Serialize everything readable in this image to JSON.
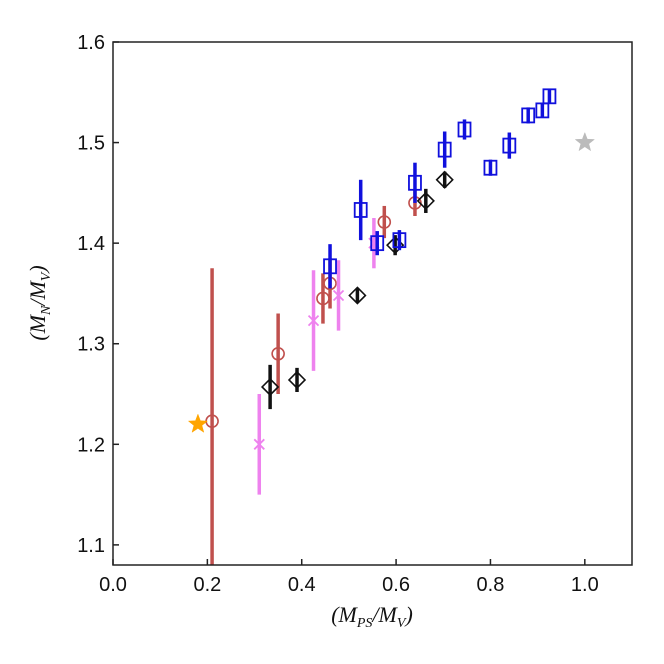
{
  "chart_data": {
    "type": "scatter",
    "title": "",
    "xlabel": {
      "main": "(M",
      "sub1": "PS",
      "mid": "/M",
      "sub2": "V",
      "end": ")"
    },
    "ylabel": {
      "main": "(M",
      "sub1": "N",
      "mid": "/M",
      "sub2": "V",
      "end": ")"
    },
    "xlim": [
      0.0,
      1.1
    ],
    "ylim": [
      1.08,
      1.6
    ],
    "xticks": [
      0.0,
      0.2,
      0.4,
      0.6,
      0.8,
      1.0
    ],
    "xtick_labels": [
      "0.0",
      "0.2",
      "0.4",
      "0.6",
      "0.8",
      "1.0"
    ],
    "yticks": [
      1.1,
      1.2,
      1.3,
      1.4,
      1.5,
      1.6
    ],
    "ytick_labels": [
      "1.1",
      "1.2",
      "1.3",
      "1.4",
      "1.5",
      "1.6"
    ],
    "grid": false,
    "series": [
      {
        "marker": "circle",
        "color": "#c0504d",
        "points": [
          {
            "x": 0.21,
            "y": 1.223,
            "lo": 1.08,
            "hi": 1.375
          },
          {
            "x": 0.35,
            "y": 1.29,
            "lo": 1.25,
            "hi": 1.33
          },
          {
            "x": 0.445,
            "y": 1.345,
            "lo": 1.32,
            "hi": 1.37
          },
          {
            "x": 0.46,
            "y": 1.36,
            "lo": 1.335,
            "hi": 1.385
          },
          {
            "x": 0.575,
            "y": 1.421,
            "lo": 1.405,
            "hi": 1.437
          },
          {
            "x": 0.64,
            "y": 1.44,
            "lo": 1.427,
            "hi": 1.453
          }
        ]
      },
      {
        "marker": "x",
        "color": "#ee82ee",
        "points": [
          {
            "x": 0.31,
            "y": 1.2,
            "lo": 1.15,
            "hi": 1.25
          },
          {
            "x": 0.425,
            "y": 1.323,
            "lo": 1.273,
            "hi": 1.373
          },
          {
            "x": 0.478,
            "y": 1.348,
            "lo": 1.313,
            "hi": 1.383
          },
          {
            "x": 0.553,
            "y": 1.4,
            "lo": 1.375,
            "hi": 1.425
          }
        ]
      },
      {
        "marker": "diamond",
        "color": "#111111",
        "points": [
          {
            "x": 0.333,
            "y": 1.257,
            "lo": 1.235,
            "hi": 1.279
          },
          {
            "x": 0.39,
            "y": 1.264,
            "lo": 1.252,
            "hi": 1.276
          },
          {
            "x": 0.518,
            "y": 1.348,
            "lo": 1.341,
            "hi": 1.355
          },
          {
            "x": 0.598,
            "y": 1.398,
            "lo": 1.388,
            "hi": 1.408
          },
          {
            "x": 0.663,
            "y": 1.442,
            "lo": 1.43,
            "hi": 1.454
          },
          {
            "x": 0.703,
            "y": 1.463,
            "lo": 1.455,
            "hi": 1.471
          }
        ]
      },
      {
        "marker": "square",
        "color": "#1010dd",
        "points": [
          {
            "x": 0.46,
            "y": 1.377,
            "lo": 1.355,
            "hi": 1.399
          },
          {
            "x": 0.525,
            "y": 1.433,
            "lo": 1.403,
            "hi": 1.463
          },
          {
            "x": 0.56,
            "y": 1.4,
            "lo": 1.388,
            "hi": 1.412
          },
          {
            "x": 0.607,
            "y": 1.403,
            "lo": 1.393,
            "hi": 1.413
          },
          {
            "x": 0.64,
            "y": 1.46,
            "lo": 1.44,
            "hi": 1.48
          },
          {
            "x": 0.703,
            "y": 1.493,
            "lo": 1.475,
            "hi": 1.511
          },
          {
            "x": 0.745,
            "y": 1.513,
            "lo": 1.503,
            "hi": 1.523
          },
          {
            "x": 0.8,
            "y": 1.475,
            "lo": 1.467,
            "hi": 1.483
          },
          {
            "x": 0.84,
            "y": 1.497,
            "lo": 1.484,
            "hi": 1.51
          },
          {
            "x": 0.88,
            "y": 1.527,
            "lo": 1.519,
            "hi": 1.535
          },
          {
            "x": 0.91,
            "y": 1.532,
            "lo": 1.525,
            "hi": 1.539
          },
          {
            "x": 0.925,
            "y": 1.546,
            "lo": 1.539,
            "hi": 1.553
          }
        ]
      },
      {
        "marker": "star",
        "color": "#ffa500",
        "points": [
          {
            "x": 0.18,
            "y": 1.22
          }
        ]
      },
      {
        "marker": "star",
        "color": "#bbbbbb",
        "points": [
          {
            "x": 1.0,
            "y": 1.5
          }
        ]
      }
    ]
  }
}
